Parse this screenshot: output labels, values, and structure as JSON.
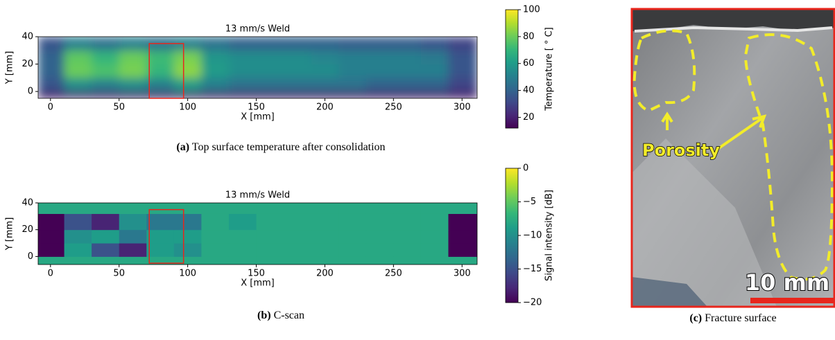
{
  "chart_data": [
    {
      "type": "heatmap",
      "title": "13 mm/s Weld",
      "xlabel": "X [mm]",
      "ylabel": "Y [mm]",
      "colorbar_label": "Temperature [ ° C]",
      "interpolation": "bilinear",
      "xlim": [
        -9,
        311
      ],
      "ylim": [
        -5,
        40
      ],
      "xticks": [
        0,
        50,
        100,
        150,
        200,
        250,
        300
      ],
      "yticks": [
        0,
        20,
        40
      ],
      "clim": [
        12,
        100
      ],
      "cticks": [
        20,
        40,
        60,
        80,
        100
      ],
      "xbins": [
        -9,
        10,
        30,
        50,
        70,
        90,
        110,
        130,
        150,
        170,
        190,
        210,
        230,
        250,
        270,
        290,
        311
      ],
      "ybins": [
        -5,
        0,
        10,
        20,
        30,
        40
      ],
      "values": [
        [
          18,
          18,
          18,
          18,
          18,
          18,
          18,
          18,
          18,
          18,
          18,
          18,
          18,
          18,
          18,
          18
        ],
        [
          35,
          55,
          50,
          55,
          50,
          60,
          50,
          45,
          45,
          45,
          45,
          45,
          40,
          40,
          40,
          30
        ],
        [
          40,
          80,
          75,
          82,
          70,
          85,
          60,
          55,
          55,
          55,
          55,
          50,
          50,
          50,
          50,
          35
        ],
        [
          40,
          78,
          70,
          80,
          72,
          82,
          58,
          55,
          55,
          55,
          52,
          50,
          50,
          50,
          48,
          35
        ],
        [
          35,
          50,
          45,
          50,
          45,
          50,
          45,
          40,
          40,
          40,
          40,
          38,
          38,
          38,
          35,
          30
        ]
      ],
      "highlight": {
        "color": "#e8261c",
        "x": [
          72,
          97
        ],
        "y": [
          -5,
          35
        ]
      }
    },
    {
      "type": "heatmap",
      "title": "13 mm/s Weld",
      "xlabel": "X [mm]",
      "ylabel": "Y [mm]",
      "colorbar_label": "Signal intensity [dB]",
      "interpolation": "nearest",
      "xlim": [
        -9,
        311
      ],
      "ylim": [
        -6,
        40
      ],
      "xticks": [
        0,
        50,
        100,
        150,
        200,
        250,
        300
      ],
      "yticks": [
        0,
        20,
        40
      ],
      "clim": [
        -20,
        0
      ],
      "cticks": [
        0,
        {
          "value": -5,
          "label": "−5"
        },
        {
          "value": -10,
          "label": "−10"
        },
        {
          "value": -15,
          "label": "−15"
        },
        {
          "value": -20,
          "label": "−20"
        }
      ],
      "xbins": [
        -9,
        10,
        30,
        50,
        70,
        90,
        110,
        130,
        150,
        170,
        190,
        210,
        230,
        250,
        270,
        290,
        311
      ],
      "ybins": [
        -6,
        0,
        10,
        20,
        32,
        40
      ],
      "values": [
        [
          -8,
          -8,
          -8,
          -8,
          -8,
          -8,
          -8,
          -8,
          -8,
          -8,
          -8,
          -8,
          -8,
          -8,
          -8,
          -8
        ],
        [
          -20,
          -9,
          -15,
          -18,
          -9,
          -10,
          -8,
          -8,
          -8,
          -8,
          -8,
          -8,
          -8,
          -8,
          -8,
          -20
        ],
        [
          -20,
          -10,
          -9,
          -12,
          -9,
          -9,
          -8,
          -8,
          -8,
          -8,
          -8,
          -8,
          -8,
          -8,
          -8,
          -20
        ],
        [
          -20,
          -15,
          -18,
          -10,
          -12,
          -12,
          -8,
          -9,
          -8,
          -8,
          -8,
          -8,
          -8,
          -8,
          -8,
          -20
        ],
        [
          -8,
          -8,
          -8,
          -8,
          -8,
          -8,
          -8,
          -8,
          -8,
          -8,
          -8,
          -8,
          -8,
          -8,
          -8,
          -8
        ]
      ],
      "highlight": {
        "color": "#e8261c",
        "x": [
          72,
          97
        ],
        "y": [
          -5,
          35
        ]
      }
    }
  ],
  "captions": [
    {
      "label": "(a)",
      "text": "Top surface temperature after consolidation"
    },
    {
      "label": "(b)",
      "text": "C-scan"
    },
    {
      "label": "(c)",
      "text": "Fracture surface"
    }
  ],
  "photo": {
    "annotation": "Porosity",
    "scale_label": "10 mm"
  }
}
